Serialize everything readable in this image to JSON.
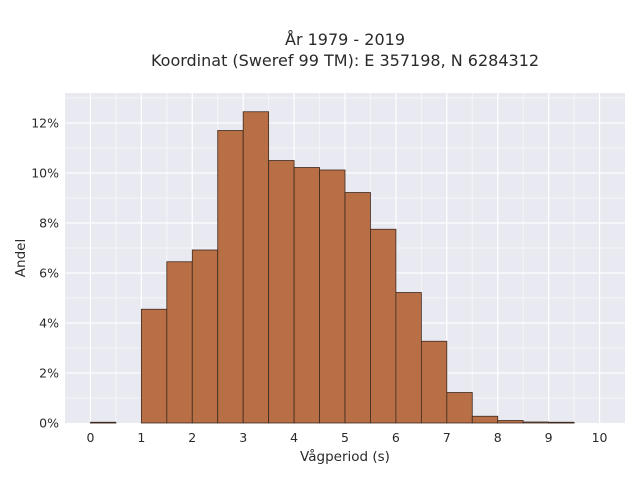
{
  "chart_data": {
    "type": "bar",
    "title": [
      "År 1979 - 2019",
      "Koordinat (Sweref 99 TM): E 357198, N 6284312"
    ],
    "xlabel": "Vågperiod (s)",
    "ylabel": "Andel",
    "bin_width": 0.5,
    "x": [
      0,
      0.5,
      1,
      1.5,
      2,
      2.5,
      3,
      3.5,
      4,
      4.5,
      5,
      5.5,
      6,
      6.5,
      7,
      7.5,
      8,
      8.5,
      9,
      9.5
    ],
    "values": [
      0.03,
      0,
      4.55,
      6.45,
      6.92,
      11.7,
      12.45,
      10.5,
      10.22,
      10.12,
      9.22,
      7.75,
      5.22,
      3.27,
      1.22,
      0.27,
      0.1,
      0.04,
      0.03,
      0
    ],
    "xlim": [
      -0.5,
      10.5
    ],
    "ylim": [
      0,
      13.2
    ],
    "x_ticks": [
      "0",
      "1",
      "2",
      "3",
      "4",
      "5",
      "6",
      "7",
      "8",
      "9",
      "10"
    ],
    "y_ticks": [
      "0%",
      "2%",
      "4%",
      "6%",
      "8%",
      "10%",
      "12%"
    ],
    "grid": true,
    "bar_color": "#b86f45",
    "bar_edge_color": "#3d2a1f",
    "plot_background": "#e9e9f1"
  }
}
